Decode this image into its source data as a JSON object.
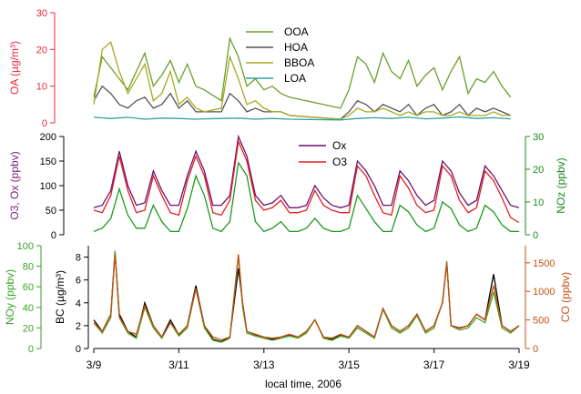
{
  "chart_data": [
    {
      "type": "line",
      "panel": "top",
      "ylabel": "OA (µg/m³)",
      "ylabel_color": "#e8283c",
      "ylim": [
        0,
        30
      ],
      "yticks": [
        "0",
        "10",
        "20",
        "30"
      ],
      "legend_placement": "top-center",
      "series": [
        {
          "name": "OOA",
          "color": "#6aa02a",
          "x": [
            9.0,
            9.2,
            9.4,
            9.6,
            9.8,
            10.0,
            10.2,
            10.4,
            10.6,
            10.8,
            11.0,
            11.2,
            11.4,
            11.6,
            12.0,
            12.2,
            12.4,
            12.6,
            12.8,
            13.0,
            13.2,
            13.4,
            13.6,
            14.8,
            15.0,
            15.2,
            15.4,
            15.6,
            15.8,
            16.0,
            16.2,
            16.4,
            16.6,
            16.8,
            17.0,
            17.2,
            17.4,
            17.6,
            17.8,
            18.0,
            18.2,
            18.4,
            18.6,
            18.8
          ],
          "y": [
            7,
            18,
            15,
            12,
            9,
            14,
            19,
            10,
            13,
            17,
            11,
            16,
            10,
            9,
            6,
            23,
            18,
            10,
            12,
            9,
            10,
            8,
            7,
            4,
            9,
            18,
            16,
            11,
            19,
            14,
            12,
            17,
            10,
            13,
            15,
            9,
            14,
            18,
            8,
            12,
            11,
            14,
            10,
            7
          ]
        },
        {
          "name": "HOA",
          "color": "#555555",
          "x": [
            9.0,
            9.2,
            9.4,
            9.6,
            9.8,
            10.0,
            10.2,
            10.4,
            10.6,
            10.8,
            11.0,
            11.2,
            11.4,
            11.6,
            12.0,
            12.2,
            12.4,
            12.6,
            12.8,
            13.0,
            13.2,
            13.4,
            13.6,
            14.8,
            15.0,
            15.2,
            15.4,
            15.6,
            15.8,
            16.0,
            16.2,
            16.4,
            16.6,
            16.8,
            17.0,
            17.2,
            17.4,
            17.6,
            17.8,
            18.0,
            18.2,
            18.4,
            18.6,
            18.8
          ],
          "y": [
            6,
            10,
            8,
            5,
            4,
            6,
            7,
            4,
            5,
            8,
            4,
            6,
            3,
            3,
            3,
            8,
            6,
            3,
            4,
            3,
            3,
            3,
            2,
            1,
            3,
            6,
            5,
            3,
            5,
            4,
            3,
            5,
            2,
            4,
            5,
            2,
            3,
            5,
            2,
            4,
            3,
            4,
            3,
            2
          ]
        },
        {
          "name": "BBOA",
          "color": "#a8a820",
          "x": [
            9.0,
            9.2,
            9.4,
            9.6,
            9.8,
            10.0,
            10.2,
            10.4,
            10.6,
            10.8,
            11.0,
            11.2,
            11.4,
            11.6,
            12.0,
            12.2,
            12.4,
            12.6,
            12.8,
            13.0,
            13.2,
            13.4,
            13.6,
            14.8,
            15.0,
            15.2,
            15.4,
            15.6,
            15.8,
            16.0,
            16.2,
            16.4,
            16.6,
            16.8,
            17.0,
            17.2,
            17.4,
            17.6,
            17.8,
            18.0,
            18.2,
            18.4,
            18.6,
            18.8
          ],
          "y": [
            5,
            20,
            22,
            14,
            8,
            12,
            16,
            6,
            8,
            14,
            5,
            7,
            4,
            3,
            4,
            18,
            12,
            5,
            6,
            4,
            3,
            3,
            2,
            1,
            2,
            4,
            3,
            3,
            4,
            3,
            2,
            3,
            2,
            3,
            3,
            2,
            2,
            3,
            2,
            2,
            2,
            3,
            2,
            2
          ]
        },
        {
          "name": "LOA",
          "color": "#30a0a0",
          "x": [
            9.0,
            9.4,
            9.8,
            10.2,
            10.6,
            11.0,
            11.4,
            11.6,
            12.0,
            12.4,
            12.8,
            13.2,
            13.6,
            14.8,
            15.2,
            15.6,
            16.0,
            16.4,
            16.8,
            17.2,
            17.6,
            18.0,
            18.4,
            18.8
          ],
          "y": [
            1.5,
            1.2,
            1.5,
            1.0,
            1.3,
            1.2,
            1.0,
            1.1,
            1.2,
            1.3,
            1.0,
            1.2,
            1.0,
            0.8,
            1.2,
            1.4,
            1.2,
            1.5,
            1.1,
            1.3,
            1.6,
            1.2,
            1.4,
            1.1
          ]
        }
      ]
    },
    {
      "type": "line",
      "panel": "middle",
      "ylabel": "O3, Ox (ppbv)",
      "ylabel_color": "#7a1f7a",
      "ylim": [
        0,
        200
      ],
      "yticks": [
        "0",
        "50",
        "100",
        "150",
        "200"
      ],
      "y2label": "NOz (ppbv)",
      "y2label_color": "#1a8a1a",
      "y2lim": [
        0,
        30
      ],
      "y2ticks": [
        "0",
        "10",
        "20",
        "30"
      ],
      "legend_placement": "top-right",
      "series": [
        {
          "name": "Ox",
          "color": "#6a1070",
          "axis": "left",
          "x": [
            9.0,
            9.2,
            9.4,
            9.6,
            9.8,
            10.0,
            10.2,
            10.4,
            10.6,
            10.8,
            11.0,
            11.2,
            11.4,
            11.6,
            11.8,
            12.0,
            12.2,
            12.4,
            12.6,
            12.8,
            13.0,
            13.2,
            13.4,
            13.6,
            13.8,
            14.0,
            14.2,
            14.4,
            14.6,
            14.8,
            15.0,
            15.2,
            15.4,
            15.6,
            15.8,
            16.0,
            16.2,
            16.4,
            16.6,
            16.8,
            17.0,
            17.2,
            17.4,
            17.6,
            17.8,
            18.0,
            18.2,
            18.4,
            18.6,
            18.8,
            19.0
          ],
          "y": [
            55,
            60,
            90,
            170,
            100,
            60,
            65,
            130,
            90,
            60,
            60,
            120,
            170,
            130,
            60,
            60,
            80,
            200,
            160,
            80,
            60,
            65,
            80,
            55,
            55,
            60,
            100,
            75,
            60,
            55,
            60,
            150,
            130,
            100,
            60,
            60,
            130,
            110,
            80,
            60,
            70,
            150,
            130,
            85,
            60,
            70,
            140,
            120,
            90,
            60,
            55
          ]
        },
        {
          "name": "O3",
          "color": "#e02020",
          "axis": "left",
          "x": [
            9.0,
            9.2,
            9.4,
            9.6,
            9.8,
            10.0,
            10.2,
            10.4,
            10.6,
            10.8,
            11.0,
            11.2,
            11.4,
            11.6,
            11.8,
            12.0,
            12.2,
            12.4,
            12.6,
            12.8,
            13.0,
            13.2,
            13.4,
            13.6,
            13.8,
            14.0,
            14.2,
            14.4,
            14.6,
            14.8,
            15.0,
            15.2,
            15.4,
            15.6,
            15.8,
            16.0,
            16.2,
            16.4,
            16.6,
            16.8,
            17.0,
            17.2,
            17.4,
            17.6,
            17.8,
            18.0,
            18.2,
            18.4,
            18.6,
            18.8,
            19.0
          ],
          "y": [
            50,
            45,
            80,
            160,
            90,
            45,
            50,
            120,
            80,
            45,
            40,
            110,
            160,
            120,
            45,
            40,
            70,
            190,
            150,
            70,
            50,
            55,
            70,
            45,
            45,
            50,
            90,
            60,
            50,
            45,
            45,
            140,
            120,
            80,
            45,
            40,
            120,
            95,
            60,
            45,
            50,
            140,
            120,
            70,
            45,
            55,
            130,
            110,
            75,
            35,
            25
          ]
        },
        {
          "name": "NOz",
          "color": "#1a9a1a",
          "axis": "right",
          "x": [
            9.0,
            9.2,
            9.4,
            9.6,
            9.8,
            10.0,
            10.2,
            10.4,
            10.6,
            10.8,
            11.0,
            11.2,
            11.4,
            11.6,
            11.8,
            12.0,
            12.2,
            12.4,
            12.6,
            12.8,
            13.0,
            13.2,
            13.4,
            13.6,
            13.8,
            14.0,
            14.2,
            14.4,
            14.6,
            14.8,
            15.0,
            15.2,
            15.4,
            15.6,
            15.8,
            16.0,
            16.2,
            16.4,
            16.6,
            16.8,
            17.0,
            17.2,
            17.4,
            17.6,
            17.8,
            18.0,
            18.2,
            18.4,
            18.6,
            18.8,
            19.0
          ],
          "y": [
            1,
            2,
            5,
            14,
            6,
            2,
            2,
            9,
            4,
            1,
            1,
            8,
            18,
            12,
            2,
            1,
            4,
            22,
            18,
            4,
            1,
            2,
            4,
            1,
            1,
            2,
            5,
            2,
            1,
            1,
            2,
            12,
            8,
            4,
            1,
            1,
            9,
            7,
            3,
            1,
            2,
            10,
            8,
            3,
            1,
            2,
            9,
            7,
            3,
            1,
            1
          ]
        }
      ]
    },
    {
      "type": "line",
      "panel": "bottom",
      "xlabel": "local time, 2006",
      "xticks": [
        "3/9",
        "3/11",
        "3/13",
        "3/15",
        "3/17",
        "3/19"
      ],
      "xlim": [
        9,
        19
      ],
      "ylabel": "BC (µg/m³)",
      "ylabel_color": "#000000",
      "ylim": [
        0,
        9
      ],
      "yticks": [
        "0",
        "2",
        "4",
        "6",
        "8"
      ],
      "y2label": "NOy (ppbv)",
      "y2label_color": "#3aa02a",
      "y2lim": [
        0,
        100
      ],
      "y2ticks": [
        "0",
        "20",
        "40",
        "60",
        "80",
        "100"
      ],
      "y3label": "CO (ppbv)",
      "y3label_color": "#c85010",
      "y3lim": [
        0,
        1800
      ],
      "y3ticks": [
        "0",
        "500",
        "1000",
        "1500"
      ],
      "series": [
        {
          "name": "BC",
          "color": "#000000",
          "axis": "left",
          "x": [
            9.0,
            9.2,
            9.4,
            9.5,
            9.6,
            9.8,
            10.0,
            10.2,
            10.4,
            10.6,
            10.8,
            11.0,
            11.2,
            11.4,
            11.6,
            11.8,
            12.0,
            12.2,
            12.4,
            12.5,
            12.6,
            12.8,
            13.0,
            13.2,
            13.4,
            13.6,
            13.8,
            14.0,
            14.2,
            14.4,
            14.6,
            14.8,
            15.0,
            15.2,
            15.4,
            15.6,
            15.8,
            16.0,
            16.2,
            16.4,
            16.6,
            16.8,
            17.0,
            17.2,
            17.3,
            17.4,
            17.6,
            17.8,
            18.0,
            18.2,
            18.4,
            18.6,
            18.8,
            19.0
          ],
          "y": [
            2.5,
            1.5,
            3.0,
            8.5,
            3.0,
            1.5,
            1.0,
            4.0,
            2.0,
            1.0,
            2.5,
            1.2,
            2.0,
            5.5,
            2.0,
            0.8,
            0.6,
            1.0,
            7.0,
            4.0,
            1.5,
            1.2,
            1.0,
            0.8,
            1.0,
            1.2,
            1.0,
            1.5,
            2.5,
            1.0,
            0.8,
            1.2,
            1.0,
            2.0,
            1.5,
            1.0,
            3.5,
            2.0,
            1.5,
            2.0,
            3.0,
            1.5,
            2.0,
            4.0,
            7.5,
            2.0,
            1.8,
            2.0,
            3.0,
            2.5,
            6.5,
            2.0,
            1.5,
            2.0
          ]
        },
        {
          "name": "NOy",
          "color": "#4aa828",
          "axis": "right-inner",
          "x": [
            9.0,
            9.2,
            9.4,
            9.5,
            9.6,
            9.8,
            10.0,
            10.2,
            10.4,
            10.6,
            10.8,
            11.0,
            11.2,
            11.4,
            11.6,
            11.8,
            12.0,
            12.2,
            12.4,
            12.5,
            12.6,
            12.8,
            13.0,
            13.2,
            13.4,
            13.6,
            13.8,
            14.0,
            14.2,
            14.4,
            14.6,
            14.8,
            15.0,
            15.2,
            15.4,
            15.6,
            15.8,
            16.0,
            16.2,
            16.4,
            16.6,
            16.8,
            17.0,
            17.2,
            17.3,
            17.4,
            17.6,
            17.8,
            18.0,
            18.2,
            18.4,
            18.6,
            18.8,
            19.0
          ],
          "y": [
            25,
            15,
            30,
            95,
            30,
            15,
            10,
            40,
            20,
            10,
            25,
            12,
            20,
            58,
            20,
            8,
            6,
            10,
            90,
            40,
            15,
            12,
            10,
            8,
            10,
            12,
            10,
            15,
            28,
            10,
            8,
            12,
            10,
            20,
            15,
            10,
            38,
            20,
            15,
            20,
            32,
            15,
            20,
            45,
            85,
            22,
            18,
            20,
            30,
            25,
            55,
            20,
            15,
            22
          ]
        },
        {
          "name": "CO",
          "color": "#c85010",
          "axis": "right",
          "x": [
            9.0,
            9.2,
            9.4,
            9.5,
            9.6,
            9.8,
            10.0,
            10.2,
            10.4,
            10.6,
            10.8,
            11.0,
            11.2,
            11.4,
            11.6,
            11.8,
            12.0,
            12.2,
            12.4,
            12.5,
            12.6,
            12.8,
            13.0,
            13.2,
            13.4,
            13.6,
            13.8,
            14.0,
            14.2,
            14.4,
            14.6,
            14.8,
            15.0,
            15.2,
            15.4,
            15.6,
            15.8,
            16.0,
            16.2,
            16.4,
            16.6,
            16.8,
            17.0,
            17.2,
            17.3,
            17.4,
            17.6,
            17.8,
            18.0,
            18.2,
            18.4,
            18.6,
            18.8,
            19.0
          ],
          "y": [
            450,
            300,
            600,
            1650,
            550,
            300,
            250,
            750,
            400,
            200,
            450,
            250,
            400,
            1050,
            400,
            200,
            150,
            200,
            1650,
            800,
            300,
            250,
            200,
            180,
            200,
            250,
            200,
            300,
            500,
            200,
            180,
            250,
            200,
            400,
            300,
            200,
            700,
            400,
            300,
            400,
            600,
            300,
            400,
            800,
            1500,
            400,
            350,
            400,
            600,
            500,
            1100,
            400,
            300,
            400
          ]
        }
      ]
    }
  ]
}
